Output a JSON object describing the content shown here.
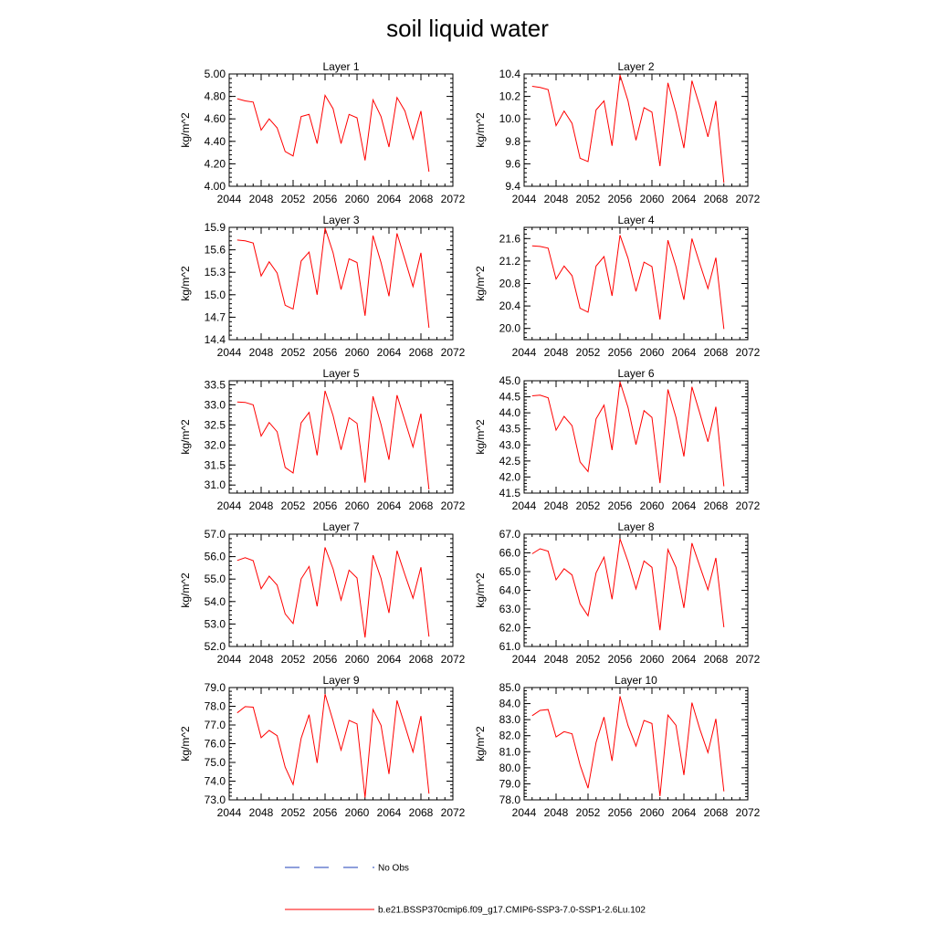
{
  "title": "soil liquid water",
  "colors": {
    "model": "#ff0000",
    "obs": "#1f3fb8"
  },
  "legend": {
    "obs_label": "No Obs",
    "model_label": "b.e21.BSSP370cmip6.f09_g17.CMIP6-SSP3-7.0-SSP1-2.6Lu.102"
  },
  "chart_data": [
    {
      "type": "line",
      "title": "Layer 1",
      "ylabel": "kg/m^2",
      "xlim": [
        2044,
        2072
      ],
      "xticks": [
        2044,
        2048,
        2052,
        2056,
        2060,
        2064,
        2068,
        2072
      ],
      "ylim": [
        4.0,
        5.0
      ],
      "yticks": [
        "4.00",
        "4.20",
        "4.40",
        "4.60",
        "4.80",
        "5.00"
      ],
      "x": [
        2045,
        2046,
        2047,
        2048,
        2049,
        2050,
        2051,
        2052,
        2053,
        2054,
        2055,
        2056,
        2057,
        2058,
        2059,
        2060,
        2061,
        2062,
        2063,
        2064,
        2065,
        2066,
        2067,
        2068,
        2069
      ],
      "y": [
        4.78,
        4.76,
        4.75,
        4.5,
        4.6,
        4.52,
        4.31,
        4.27,
        4.62,
        4.64,
        4.38,
        4.81,
        4.69,
        4.38,
        4.64,
        4.61,
        4.23,
        4.77,
        4.62,
        4.35,
        4.79,
        4.67,
        4.42,
        4.67,
        4.13
      ]
    },
    {
      "type": "line",
      "title": "Layer 2",
      "ylabel": "kg/m^2",
      "xlim": [
        2044,
        2072
      ],
      "xticks": [
        2044,
        2048,
        2052,
        2056,
        2060,
        2064,
        2068,
        2072
      ],
      "ylim": [
        9.4,
        10.4
      ],
      "yticks": [
        "9.4",
        "9.6",
        "9.8",
        "10.0",
        "10.2",
        "10.4"
      ],
      "x": [
        2045,
        2046,
        2047,
        2048,
        2049,
        2050,
        2051,
        2052,
        2053,
        2054,
        2055,
        2056,
        2057,
        2058,
        2059,
        2060,
        2061,
        2062,
        2063,
        2064,
        2065,
        2066,
        2067,
        2068,
        2069
      ],
      "y": [
        10.29,
        10.28,
        10.26,
        9.94,
        10.07,
        9.96,
        9.65,
        9.62,
        10.08,
        10.16,
        9.76,
        10.39,
        10.16,
        9.81,
        10.1,
        10.06,
        9.58,
        10.32,
        10.06,
        9.74,
        10.34,
        10.11,
        9.84,
        10.16,
        9.43
      ]
    },
    {
      "type": "line",
      "title": "Layer 3",
      "ylabel": "kg/m^2",
      "xlim": [
        2044,
        2072
      ],
      "xticks": [
        2044,
        2048,
        2052,
        2056,
        2060,
        2064,
        2068,
        2072
      ],
      "ylim": [
        14.4,
        15.9
      ],
      "yticks": [
        "14.4",
        "14.7",
        "15.0",
        "15.3",
        "15.6",
        "15.9"
      ],
      "x": [
        2045,
        2046,
        2047,
        2048,
        2049,
        2050,
        2051,
        2052,
        2053,
        2054,
        2055,
        2056,
        2057,
        2058,
        2059,
        2060,
        2061,
        2062,
        2063,
        2064,
        2065,
        2066,
        2067,
        2068,
        2069
      ],
      "y": [
        15.73,
        15.72,
        15.69,
        15.25,
        15.44,
        15.29,
        14.86,
        14.81,
        15.45,
        15.57,
        15.0,
        15.89,
        15.56,
        15.07,
        15.48,
        15.43,
        14.72,
        15.79,
        15.43,
        14.98,
        15.82,
        15.47,
        15.11,
        15.56,
        14.56
      ]
    },
    {
      "type": "line",
      "title": "Layer 4",
      "ylabel": "kg/m^2",
      "xlim": [
        2044,
        2072
      ],
      "xticks": [
        2044,
        2048,
        2052,
        2056,
        2060,
        2064,
        2068,
        2072
      ],
      "ylim": [
        19.8,
        21.8
      ],
      "yticks": [
        "20.0",
        "20.4",
        "20.8",
        "21.2",
        "21.6"
      ],
      "x": [
        2045,
        2046,
        2047,
        2048,
        2049,
        2050,
        2051,
        2052,
        2053,
        2054,
        2055,
        2056,
        2057,
        2058,
        2059,
        2060,
        2061,
        2062,
        2063,
        2064,
        2065,
        2066,
        2067,
        2068,
        2069
      ],
      "y": [
        21.47,
        21.46,
        21.43,
        20.88,
        21.11,
        20.94,
        20.36,
        20.29,
        21.11,
        21.28,
        20.58,
        21.66,
        21.25,
        20.66,
        21.18,
        21.1,
        20.16,
        21.57,
        21.1,
        20.51,
        21.6,
        21.15,
        20.71,
        21.26,
        19.99
      ]
    },
    {
      "type": "line",
      "title": "Layer 5",
      "ylabel": "kg/m^2",
      "xlim": [
        2044,
        2072
      ],
      "xticks": [
        2044,
        2048,
        2052,
        2056,
        2060,
        2064,
        2068,
        2072
      ],
      "ylim": [
        30.8,
        33.6
      ],
      "yticks": [
        "31.0",
        "31.5",
        "32.0",
        "32.5",
        "33.0",
        "33.5"
      ],
      "x": [
        2045,
        2046,
        2047,
        2048,
        2049,
        2050,
        2051,
        2052,
        2053,
        2054,
        2055,
        2056,
        2057,
        2058,
        2059,
        2060,
        2061,
        2062,
        2063,
        2064,
        2065,
        2066,
        2067,
        2068,
        2069
      ],
      "y": [
        33.07,
        33.06,
        33.0,
        32.22,
        32.56,
        32.33,
        31.44,
        31.3,
        32.55,
        32.81,
        31.74,
        33.35,
        32.73,
        31.88,
        32.68,
        32.54,
        31.06,
        33.21,
        32.51,
        31.63,
        33.24,
        32.6,
        31.95,
        32.78,
        30.89
      ]
    },
    {
      "type": "line",
      "title": "Layer 6",
      "ylabel": "kg/m^2",
      "xlim": [
        2044,
        2072
      ],
      "xticks": [
        2044,
        2048,
        2052,
        2056,
        2060,
        2064,
        2068,
        2072
      ],
      "ylim": [
        41.5,
        45.0
      ],
      "yticks": [
        "41.5",
        "42.0",
        "42.5",
        "43.0",
        "43.5",
        "44.0",
        "44.5",
        "45.0"
      ],
      "x": [
        2045,
        2046,
        2047,
        2048,
        2049,
        2050,
        2051,
        2052,
        2053,
        2054,
        2055,
        2056,
        2057,
        2058,
        2059,
        2060,
        2061,
        2062,
        2063,
        2064,
        2065,
        2066,
        2067,
        2068,
        2069
      ],
      "y": [
        44.53,
        44.55,
        44.47,
        43.46,
        43.89,
        43.6,
        42.47,
        42.17,
        43.81,
        44.24,
        42.84,
        44.97,
        44.17,
        43.01,
        44.07,
        43.86,
        41.81,
        44.73,
        43.86,
        42.64,
        44.81,
        43.98,
        43.1,
        44.19,
        41.71
      ]
    },
    {
      "type": "line",
      "title": "Layer 7",
      "ylabel": "kg/m^2",
      "xlim": [
        2044,
        2072
      ],
      "xticks": [
        2044,
        2048,
        2052,
        2056,
        2060,
        2064,
        2068,
        2072
      ],
      "ylim": [
        52.0,
        57.0
      ],
      "yticks": [
        "52.0",
        "53.0",
        "54.0",
        "55.0",
        "56.0",
        "57.0"
      ],
      "x": [
        2045,
        2046,
        2047,
        2048,
        2049,
        2050,
        2051,
        2052,
        2053,
        2054,
        2055,
        2056,
        2057,
        2058,
        2059,
        2060,
        2061,
        2062,
        2063,
        2064,
        2065,
        2066,
        2067,
        2068,
        2069
      ],
      "y": [
        55.83,
        55.95,
        55.82,
        54.57,
        55.13,
        54.73,
        53.45,
        53.02,
        55.01,
        55.56,
        53.79,
        56.41,
        55.45,
        54.07,
        55.4,
        55.05,
        52.4,
        56.06,
        55.03,
        53.49,
        56.26,
        55.19,
        54.15,
        55.53,
        52.44
      ]
    },
    {
      "type": "line",
      "title": "Layer 8",
      "ylabel": "kg/m^2",
      "xlim": [
        2044,
        2072
      ],
      "xticks": [
        2044,
        2048,
        2052,
        2056,
        2060,
        2064,
        2068,
        2072
      ],
      "ylim": [
        61.0,
        67.0
      ],
      "yticks": [
        "61.0",
        "62.0",
        "63.0",
        "64.0",
        "65.0",
        "66.0",
        "67.0"
      ],
      "x": [
        2045,
        2046,
        2047,
        2048,
        2049,
        2050,
        2051,
        2052,
        2053,
        2054,
        2055,
        2056,
        2057,
        2058,
        2059,
        2060,
        2061,
        2062,
        2063,
        2064,
        2065,
        2066,
        2067,
        2068,
        2069
      ],
      "y": [
        65.95,
        66.22,
        66.09,
        64.56,
        65.15,
        64.82,
        63.28,
        62.64,
        64.93,
        65.77,
        63.52,
        66.75,
        65.53,
        64.08,
        65.57,
        65.23,
        61.87,
        66.18,
        65.23,
        63.06,
        66.52,
        65.28,
        64.03,
        65.73,
        62.03
      ]
    },
    {
      "type": "line",
      "title": "Layer 9",
      "ylabel": "kg/m^2",
      "xlim": [
        2044,
        2072
      ],
      "xticks": [
        2044,
        2048,
        2052,
        2056,
        2060,
        2064,
        2068,
        2072
      ],
      "ylim": [
        73.0,
        79.0
      ],
      "yticks": [
        "73.0",
        "74.0",
        "75.0",
        "76.0",
        "77.0",
        "78.0",
        "79.0"
      ],
      "x": [
        2045,
        2046,
        2047,
        2048,
        2049,
        2050,
        2051,
        2052,
        2053,
        2054,
        2055,
        2056,
        2057,
        2058,
        2059,
        2060,
        2061,
        2062,
        2063,
        2064,
        2065,
        2066,
        2067,
        2068,
        2069
      ],
      "y": [
        77.65,
        77.98,
        77.95,
        76.32,
        76.71,
        76.43,
        74.75,
        73.82,
        76.29,
        77.55,
        74.97,
        78.65,
        77.21,
        75.66,
        77.25,
        77.06,
        73.12,
        77.83,
        76.98,
        74.38,
        78.31,
        76.96,
        75.56,
        77.48,
        73.33
      ]
    },
    {
      "type": "line",
      "title": "Layer 10",
      "ylabel": "kg/m^2",
      "xlim": [
        2044,
        2072
      ],
      "xticks": [
        2044,
        2048,
        2052,
        2056,
        2060,
        2064,
        2068,
        2072
      ],
      "ylim": [
        78.0,
        85.0
      ],
      "yticks": [
        "78.0",
        "79.0",
        "80.0",
        "81.0",
        "82.0",
        "83.0",
        "84.0",
        "85.0"
      ],
      "x": [
        2045,
        2046,
        2047,
        2048,
        2049,
        2050,
        2051,
        2052,
        2053,
        2054,
        2055,
        2056,
        2057,
        2058,
        2059,
        2060,
        2061,
        2062,
        2063,
        2064,
        2065,
        2066,
        2067,
        2068,
        2069
      ],
      "y": [
        83.25,
        83.58,
        83.63,
        81.92,
        82.25,
        82.12,
        80.17,
        78.73,
        81.58,
        83.16,
        80.43,
        84.46,
        82.63,
        81.35,
        82.95,
        82.76,
        78.23,
        83.28,
        82.65,
        79.55,
        84.06,
        82.4,
        80.95,
        83.05,
        78.53
      ]
    }
  ]
}
